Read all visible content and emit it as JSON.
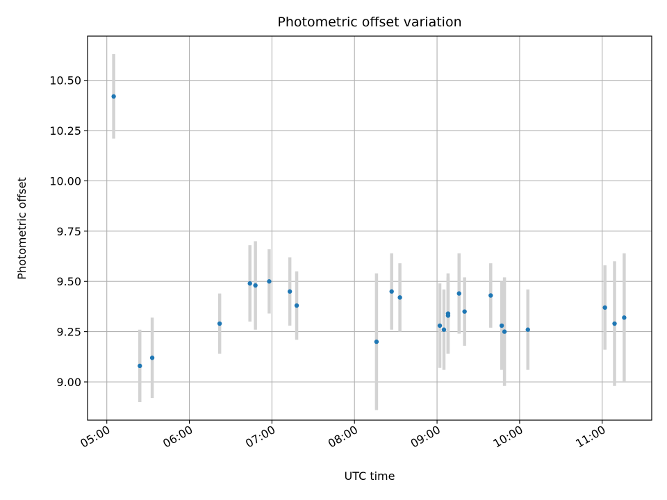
{
  "chart_data": {
    "type": "scatter",
    "title": "Photometric offset variation",
    "xlabel": "UTC time",
    "ylabel": "Photometric offset",
    "x_ticks": [
      "05:00",
      "06:00",
      "07:00",
      "08:00",
      "09:00",
      "10:00",
      "11:00"
    ],
    "y_ticks": [
      "9.00",
      "9.25",
      "9.50",
      "9.75",
      "10.00",
      "10.25",
      "10.50"
    ],
    "xlim": [
      "04:46",
      "11:36"
    ],
    "ylim": [
      8.81,
      10.72
    ],
    "grid": true,
    "colors": {
      "point": "#1f77b4",
      "errorbar": "#d3d3d3",
      "grid": "#b0b0b0"
    },
    "series": [
      {
        "points": [
          {
            "x": "05:05",
            "y": 10.42,
            "err": 0.21
          },
          {
            "x": "05:24",
            "y": 9.08,
            "err": 0.18
          },
          {
            "x": "05:33",
            "y": 9.12,
            "err": 0.2
          },
          {
            "x": "06:22",
            "y": 9.29,
            "err": 0.15
          },
          {
            "x": "06:44",
            "y": 9.49,
            "err": 0.19
          },
          {
            "x": "06:48",
            "y": 9.48,
            "err": 0.22
          },
          {
            "x": "06:58",
            "y": 9.5,
            "err": 0.16
          },
          {
            "x": "07:13",
            "y": 9.45,
            "err": 0.17
          },
          {
            "x": "07:18",
            "y": 9.38,
            "err": 0.17
          },
          {
            "x": "08:16",
            "y": 9.2,
            "err": 0.34
          },
          {
            "x": "08:27",
            "y": 9.45,
            "err": 0.19
          },
          {
            "x": "08:33",
            "y": 9.42,
            "err": 0.17
          },
          {
            "x": "09:02",
            "y": 9.28,
            "err": 0.21
          },
          {
            "x": "09:05",
            "y": 9.26,
            "err": 0.2
          },
          {
            "x": "09:08",
            "y": 9.34,
            "err": 0.2
          },
          {
            "x": "09:08",
            "y": 9.33,
            "err": 0.19
          },
          {
            "x": "09:16",
            "y": 9.44,
            "err": 0.2
          },
          {
            "x": "09:20",
            "y": 9.35,
            "err": 0.17
          },
          {
            "x": "09:39",
            "y": 9.43,
            "err": 0.16
          },
          {
            "x": "09:47",
            "y": 9.28,
            "err": 0.22
          },
          {
            "x": "09:49",
            "y": 9.25,
            "err": 0.27
          },
          {
            "x": "10:06",
            "y": 9.26,
            "err": 0.2
          },
          {
            "x": "11:02",
            "y": 9.37,
            "err": 0.21
          },
          {
            "x": "11:09",
            "y": 9.29,
            "err": 0.31
          },
          {
            "x": "11:16",
            "y": 9.32,
            "err": 0.32
          }
        ]
      }
    ]
  }
}
